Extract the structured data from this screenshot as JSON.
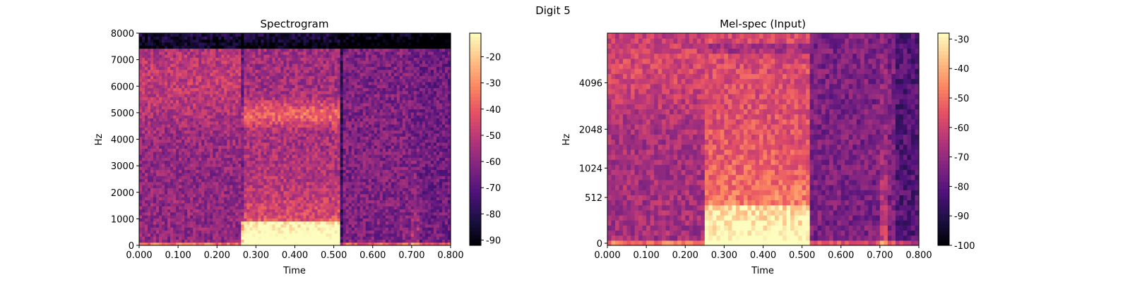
{
  "figure": {
    "suptitle": "Digit 5"
  },
  "colormap": [
    "#000004",
    "#1c1044",
    "#4f127b",
    "#812581",
    "#b5367a",
    "#e55064",
    "#fb8761",
    "#fec287",
    "#fcfdbf"
  ],
  "chart_data": [
    {
      "type": "heatmap",
      "title": "Spectrogram",
      "xlabel": "Time",
      "ylabel": "Hz",
      "xlim": [
        0.0,
        0.8
      ],
      "ylim": [
        0,
        8000
      ],
      "x_ticks": [
        "0.000",
        "0.100",
        "0.200",
        "0.300",
        "0.400",
        "0.500",
        "0.600",
        "0.700",
        "0.800"
      ],
      "x_tick_values": [
        0.0,
        0.1,
        0.2,
        0.3,
        0.4,
        0.5,
        0.6,
        0.7,
        0.8
      ],
      "y_ticks": [
        "0",
        "1000",
        "2000",
        "3000",
        "4000",
        "5000",
        "6000",
        "7000",
        "8000"
      ],
      "y_tick_values": [
        0,
        1000,
        2000,
        3000,
        4000,
        5000,
        6000,
        7000,
        8000
      ],
      "colorbar": {
        "min": -92,
        "max": -11,
        "ticks": [
          "-20",
          "-30",
          "-40",
          "-50",
          "-60",
          "-70",
          "-80",
          "-90"
        ],
        "tick_values": [
          -20,
          -30,
          -40,
          -50,
          -60,
          -70,
          -80,
          -90
        ]
      },
      "time_segments": [
        0.0,
        0.27,
        0.52,
        0.7,
        0.72,
        0.8
      ]
    },
    {
      "type": "heatmap",
      "title": "Mel-spec (Input)",
      "xlabel": "Time",
      "ylabel": "Hz",
      "xlim": [
        0.0,
        0.8
      ],
      "y_scale": "mel",
      "x_ticks": [
        "0.000",
        "0.100",
        "0.200",
        "0.300",
        "0.400",
        "0.500",
        "0.600",
        "0.700",
        "0.800"
      ],
      "x_tick_values": [
        0.0,
        0.1,
        0.2,
        0.3,
        0.4,
        0.5,
        0.6,
        0.7,
        0.8
      ],
      "y_ticks": [
        "0",
        "512",
        "1024",
        "2048",
        "4096"
      ],
      "y_tick_values": [
        0,
        512,
        1024,
        2048,
        4096
      ],
      "colorbar": {
        "min": -100,
        "max": -28,
        "ticks": [
          "-30",
          "-40",
          "-50",
          "-60",
          "-70",
          "-80",
          "-90",
          "-100"
        ],
        "tick_values": [
          -30,
          -40,
          -50,
          -60,
          -70,
          -80,
          -90,
          -100
        ]
      },
      "time_segments": [
        0.0,
        0.25,
        0.52,
        0.7,
        0.72,
        0.8
      ]
    }
  ]
}
